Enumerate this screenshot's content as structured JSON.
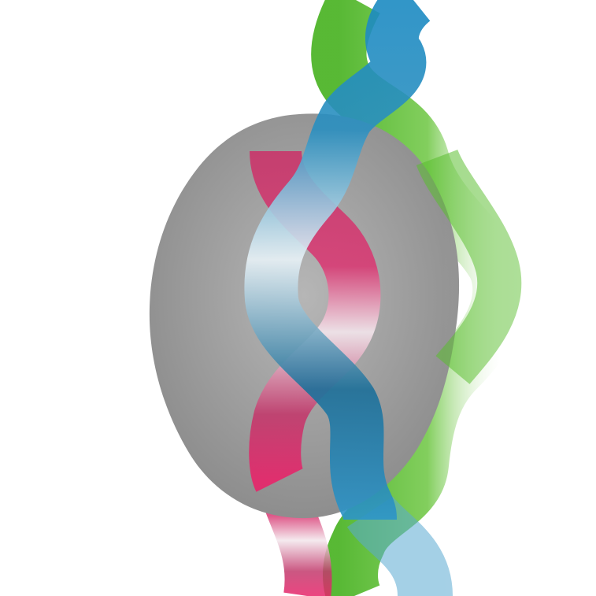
{
  "illustration": {
    "colors": {
      "background": "#ffffff",
      "blob": "#8c8c8c",
      "blob_highlight": "#b4b4b4",
      "strand_green": "#59be2e",
      "strand_blue": "#1a86bd",
      "strand_pink": "#e0246a",
      "strand_light": "#ffffff"
    },
    "elements": [
      "gray-blob",
      "green-strand",
      "blue-strand",
      "pink-strand"
    ]
  }
}
